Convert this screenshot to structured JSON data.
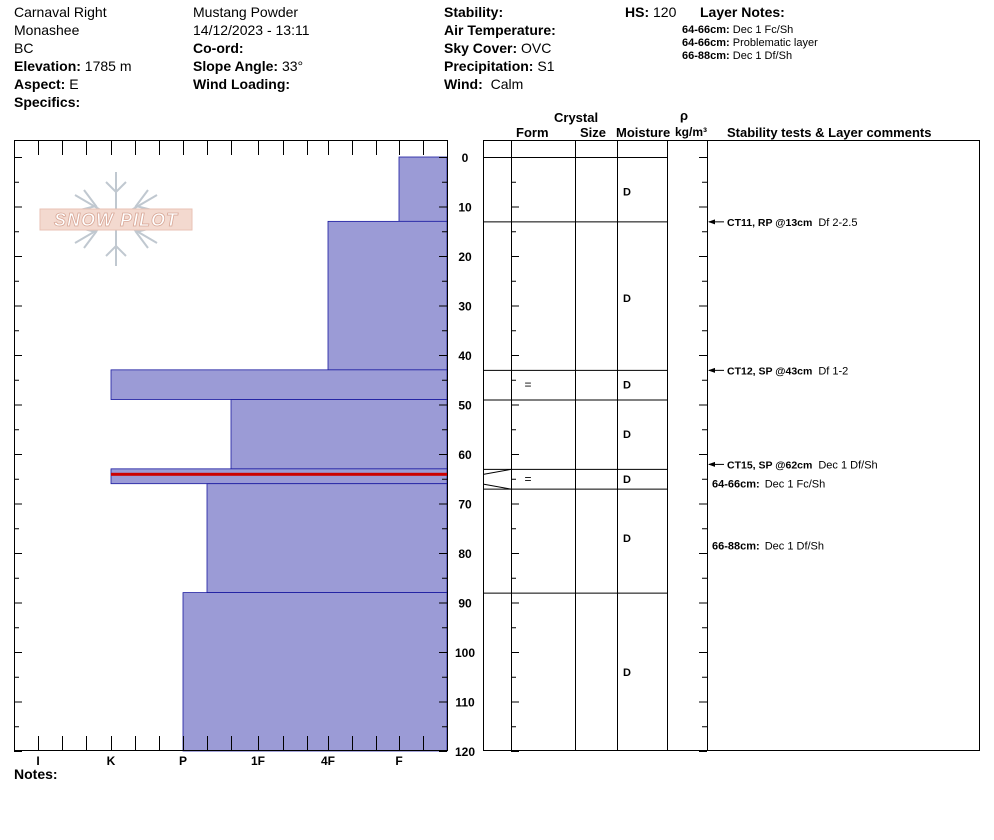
{
  "header": {
    "col1": {
      "location": "Carnaval Right",
      "range": "Monashee",
      "province": "BC",
      "elevation_label": "Elevation:",
      "elevation_value": "1785 m",
      "aspect_label": "Aspect:",
      "aspect_value": "E",
      "specifics_label": "Specifics:"
    },
    "col2": {
      "observer": "Mustang Powder",
      "datetime": "14/12/2023 - 13:11",
      "coord_label": "Co-ord:",
      "slope_label": "Slope Angle:",
      "slope_value": "33°",
      "wind_loading_label": "Wind Loading:"
    },
    "col3": {
      "stability_label": "Stability:",
      "air_temp_label": "Air Temperature:",
      "sky_label": "Sky Cover:",
      "sky_value": "OVC",
      "precip_label": "Precipitation:",
      "precip_value": "S1",
      "wind_label": "Wind:",
      "wind_value": "Calm"
    },
    "hs_label": "HS:",
    "hs_value": "120",
    "layer_notes_title": "Layer Notes:",
    "layer_notes": [
      {
        "range": "64-66cm:",
        "text": "Dec 1 Fc/Sh"
      },
      {
        "range": "64-66cm:",
        "text": "Problematic layer"
      },
      {
        "range": "66-88cm:",
        "text": "Dec 1 Df/Sh"
      }
    ]
  },
  "columns": {
    "crystal": "Crystal",
    "form": "Form",
    "size": "Size",
    "moisture": "Moisture",
    "rho": "ρ",
    "density_unit": "kg/m³",
    "comments": "Stability tests & Layer comments"
  },
  "notes_label": "Notes:",
  "logo_text": "SNOW PILOT",
  "colors": {
    "fill": "#9b9bd6",
    "layer_edge": "#1a1aa0",
    "problem_layer": "#cc0000"
  },
  "chart_data": {
    "type": "hardness-profile",
    "depth_unit": "cm",
    "ylim": [
      0,
      120
    ],
    "depth_ticks": [
      0,
      10,
      20,
      30,
      40,
      50,
      60,
      70,
      80,
      90,
      100,
      110,
      120
    ],
    "hardness_ticks": [
      "I",
      "K",
      "P",
      "1F",
      "4F",
      "F"
    ],
    "layers": [
      {
        "top": 0,
        "bottom": 13,
        "hardness": "F",
        "moisture": "D",
        "form": ""
      },
      {
        "top": 13,
        "bottom": 43,
        "hardness": "4F",
        "moisture": "D",
        "form": ""
      },
      {
        "top": 43,
        "bottom": 49,
        "hardness": "K+",
        "moisture": "D",
        "form": "="
      },
      {
        "top": 49,
        "bottom": 63,
        "hardness": "1F-",
        "moisture": "D",
        "form": ""
      },
      {
        "top": 63,
        "bottom": 64,
        "hardness": "K+",
        "moisture": "D",
        "form": "="
      },
      {
        "top": 64,
        "bottom": 66,
        "hardness": "K+",
        "moisture": "D",
        "form": "=",
        "problematic": true
      },
      {
        "top": 66,
        "bottom": 88,
        "hardness": "P+",
        "moisture": "D",
        "form": ""
      },
      {
        "top": 88,
        "bottom": 120,
        "hardness": "P",
        "moisture": "D",
        "form": ""
      }
    ],
    "moisture_labels": [
      {
        "depth": 7,
        "text": "D"
      },
      {
        "depth": 28.5,
        "text": "D"
      },
      {
        "depth": 46,
        "text": "D"
      },
      {
        "depth": 56,
        "text": "D"
      },
      {
        "depth": 65,
        "text": "D"
      },
      {
        "depth": 77,
        "text": "D"
      },
      {
        "depth": 104,
        "text": "D"
      }
    ],
    "form_labels": [
      {
        "depth": 46,
        "text": "="
      },
      {
        "depth": 65,
        "text": "="
      }
    ],
    "stability_tests": [
      {
        "depth": 13,
        "label": "CT11, RP @13cm",
        "comment": "Df 2-2.5"
      },
      {
        "depth": 43,
        "label": "CT12, SP @43cm",
        "comment": "Df 1-2"
      },
      {
        "depth": 62,
        "label": "CT15, SP @62cm",
        "comment": "Dec 1 Df/Sh"
      }
    ],
    "layer_comments": [
      {
        "depth": 66,
        "range": "64-66cm:",
        "text": "Dec 1 Fc/Sh"
      },
      {
        "depth": 78.5,
        "range": "66-88cm:",
        "text": "Dec 1 Df/Sh"
      }
    ]
  }
}
